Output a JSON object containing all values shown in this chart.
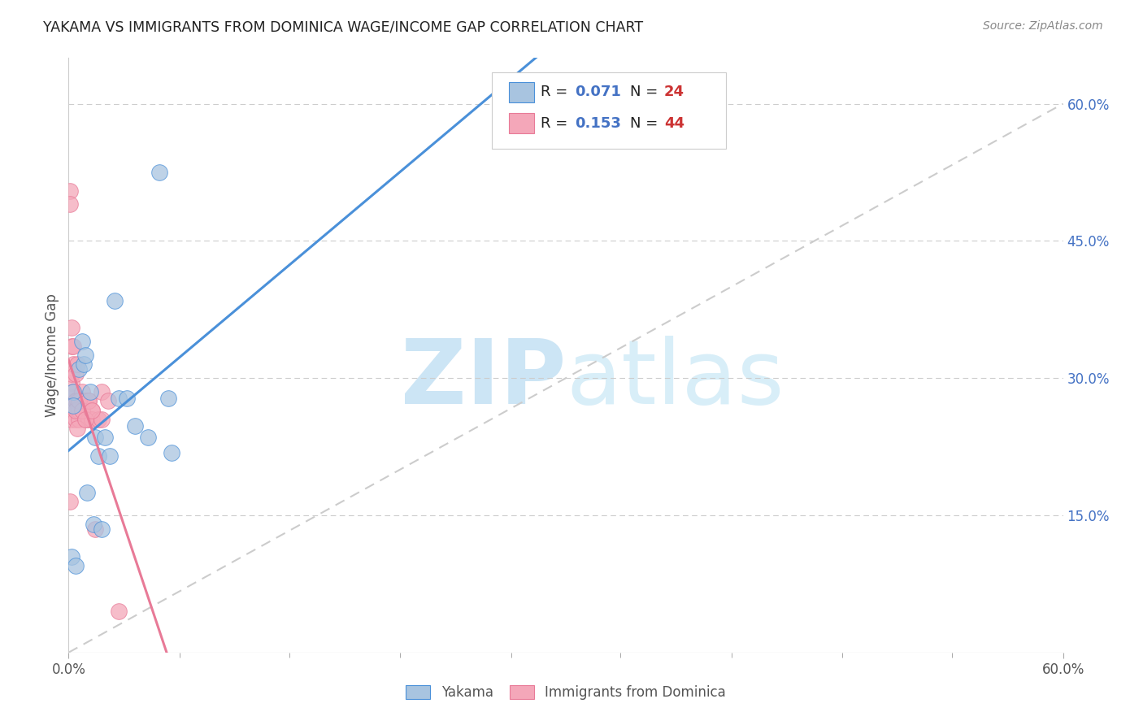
{
  "title": "YAKAMA VS IMMIGRANTS FROM DOMINICA WAGE/INCOME GAP CORRELATION CHART",
  "source": "Source: ZipAtlas.com",
  "ylabel": "Wage/Income Gap",
  "xlim": [
    0.0,
    0.6
  ],
  "ylim": [
    0.0,
    0.65
  ],
  "xtick_labels": [
    "0.0%",
    "",
    "",
    "",
    "",
    "",
    "",
    "",
    "",
    "60.0%"
  ],
  "xtick_values": [
    0.0,
    0.067,
    0.133,
    0.2,
    0.267,
    0.333,
    0.4,
    0.467,
    0.533,
    0.6
  ],
  "ytick_labels": [
    "15.0%",
    "30.0%",
    "45.0%",
    "60.0%"
  ],
  "ytick_values": [
    0.15,
    0.3,
    0.45,
    0.6
  ],
  "color_yakama": "#a8c4e0",
  "color_dominica": "#f4a7b9",
  "line_color_yakama": "#4a90d9",
  "line_color_dominica": "#e87a97",
  "r_value_color": "#4472c4",
  "n_value_color": "#cc3333",
  "yakama_x": [
    0.003,
    0.003,
    0.006,
    0.008,
    0.009,
    0.01,
    0.011,
    0.013,
    0.015,
    0.016,
    0.018,
    0.02,
    0.022,
    0.025,
    0.028,
    0.03,
    0.035,
    0.04,
    0.048,
    0.06,
    0.062,
    0.002,
    0.004,
    0.055
  ],
  "yakama_y": [
    0.285,
    0.27,
    0.31,
    0.34,
    0.315,
    0.325,
    0.175,
    0.285,
    0.14,
    0.235,
    0.215,
    0.135,
    0.235,
    0.215,
    0.385,
    0.278,
    0.278,
    0.248,
    0.235,
    0.278,
    0.218,
    0.105,
    0.095,
    0.525
  ],
  "dominica_x": [
    0.001,
    0.001,
    0.001,
    0.001,
    0.001,
    0.002,
    0.002,
    0.002,
    0.002,
    0.002,
    0.003,
    0.003,
    0.003,
    0.004,
    0.004,
    0.004,
    0.004,
    0.005,
    0.005,
    0.005,
    0.006,
    0.006,
    0.007,
    0.008,
    0.008,
    0.01,
    0.01,
    0.012,
    0.012,
    0.014,
    0.014,
    0.016,
    0.018,
    0.02,
    0.02,
    0.024,
    0.03,
    0.004,
    0.005,
    0.006,
    0.008,
    0.01,
    0.012,
    0.014
  ],
  "dominica_y": [
    0.28,
    0.27,
    0.505,
    0.49,
    0.165,
    0.295,
    0.335,
    0.355,
    0.305,
    0.255,
    0.315,
    0.285,
    0.335,
    0.305,
    0.275,
    0.275,
    0.255,
    0.275,
    0.265,
    0.315,
    0.255,
    0.265,
    0.275,
    0.285,
    0.275,
    0.275,
    0.255,
    0.255,
    0.275,
    0.265,
    0.255,
    0.135,
    0.255,
    0.285,
    0.255,
    0.275,
    0.045,
    0.265,
    0.245,
    0.275,
    0.265,
    0.255,
    0.275,
    0.265
  ],
  "background_color": "#ffffff",
  "watermark_text": "ZIPatlas",
  "watermark_color": "#cce5f5"
}
